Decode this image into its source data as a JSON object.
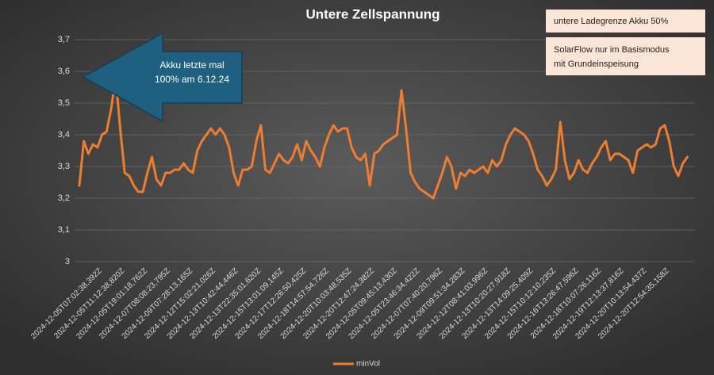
{
  "chart_data": {
    "type": "line",
    "title": "Untere Zellspannung",
    "categories": [
      "2024-12-05T07:02:38,392Z",
      null,
      null,
      null,
      null,
      "2024-12-05T11:12:38,820Z",
      null,
      null,
      null,
      null,
      "2024-12-05T19:01:18,762Z",
      null,
      null,
      null,
      null,
      "2024-12-07T08:08:23,795Z",
      null,
      null,
      null,
      null,
      "2024-12-09T07:28:13,165Z",
      null,
      null,
      null,
      null,
      "2024-12-12T15:02:21,026Z",
      null,
      null,
      null,
      null,
      "2024-12-13T10:42:44,446Z",
      null,
      null,
      null,
      null,
      "2024-12-13T22:35:01,620Z",
      null,
      null,
      null,
      null,
      "2024-12-15T13:01:09,145Z",
      null,
      null,
      null,
      null,
      "2024-12-17T12:26:50,425Z",
      null,
      null,
      null,
      null,
      "2024-12-18T14:57:54,726Z",
      null,
      null,
      null,
      null,
      "2024-12-20T10:03:48,535Z",
      null,
      null,
      null,
      null,
      "2024-12-20T12:47:24,382Z",
      null,
      null,
      null,
      null,
      "2024-12-05T09:45:13,430Z",
      null,
      null,
      null,
      null,
      "2024-12-05T23:46:34,422Z",
      null,
      null,
      null,
      null,
      "2024-12-07T07:40:20,796Z",
      null,
      null,
      null,
      null,
      "2024-12-09T09:51:34,283Z",
      null,
      null,
      null,
      null,
      "2024-12-12T08:41:03,996Z",
      null,
      null,
      null,
      null,
      "2024-12-13T10:20:27,918Z",
      null,
      null,
      null,
      null,
      "2024-12-13T14:09:25,409Z",
      null,
      null,
      null,
      null,
      "2024-12-15T10:12:10,235Z",
      null,
      null,
      null,
      null,
      "2024-12-16T13:26:47,596Z",
      null,
      null,
      null,
      null,
      "2024-12-18T10:07:26,116Z",
      null,
      null,
      null,
      null,
      "2024-12-19T12:13:37,816Z",
      null,
      null,
      null,
      null,
      "2024-12-20T10:13:54,437Z",
      null,
      null,
      null,
      null,
      "2024-12-20T12:54:35,158Z",
      null,
      null,
      null,
      null,
      null,
      null,
      null,
      null,
      null
    ],
    "series": [
      {
        "name": "minVol",
        "color": "#ed7d31",
        "values": [
          3.24,
          3.38,
          3.34,
          3.37,
          3.36,
          3.4,
          3.41,
          3.48,
          3.58,
          3.42,
          3.28,
          3.27,
          3.24,
          3.22,
          3.22,
          3.28,
          3.33,
          3.26,
          3.24,
          3.28,
          3.28,
          3.29,
          3.29,
          3.31,
          3.29,
          3.28,
          3.35,
          3.38,
          3.4,
          3.42,
          3.4,
          3.42,
          3.4,
          3.36,
          3.28,
          3.24,
          3.29,
          3.29,
          3.3,
          3.38,
          3.43,
          3.29,
          3.28,
          3.31,
          3.34,
          3.32,
          3.31,
          3.33,
          3.37,
          3.32,
          3.38,
          3.35,
          3.33,
          3.3,
          3.36,
          3.4,
          3.43,
          3.41,
          3.42,
          3.42,
          3.36,
          3.33,
          3.32,
          3.34,
          3.24,
          3.34,
          3.35,
          3.37,
          3.38,
          3.39,
          3.4,
          3.54,
          3.42,
          3.28,
          3.25,
          3.23,
          3.22,
          3.21,
          3.2,
          3.24,
          3.28,
          3.33,
          3.3,
          3.23,
          3.28,
          3.27,
          3.29,
          3.28,
          3.29,
          3.3,
          3.28,
          3.32,
          3.3,
          3.32,
          3.37,
          3.4,
          3.42,
          3.41,
          3.4,
          3.38,
          3.34,
          3.29,
          3.27,
          3.24,
          3.26,
          3.29,
          3.44,
          3.32,
          3.26,
          3.28,
          3.32,
          3.29,
          3.28,
          3.31,
          3.33,
          3.36,
          3.38,
          3.32,
          3.34,
          3.34,
          3.33,
          3.32,
          3.28,
          3.35,
          3.36,
          3.37,
          3.36,
          3.37,
          3.42,
          3.43,
          3.38,
          3.3,
          3.27,
          3.31,
          3.33
        ]
      }
    ],
    "ylim": [
      3,
      3.7
    ],
    "yticks": [
      3,
      {
        "value": 3.1,
        "label": "3,1"
      },
      {
        "value": 3.2,
        "label": "3,2"
      },
      {
        "value": 3.3,
        "label": "3,3"
      },
      {
        "value": 3.4,
        "label": "3,4"
      },
      {
        "value": 3.5,
        "label": "3,5"
      },
      {
        "value": 3.6,
        "label": "3,6"
      },
      {
        "value": 3.7,
        "label": "3,7"
      }
    ],
    "grid": true,
    "legend": "bottom",
    "callout": [
      "Akku letzte mal",
      "100% am 6.12.24"
    ],
    "notes": [
      [
        "untere Ladegrenze Akku 50%"
      ],
      [
        "SolarFlow nur im Basismodus",
        "mit Grundeinspeisung"
      ]
    ]
  }
}
